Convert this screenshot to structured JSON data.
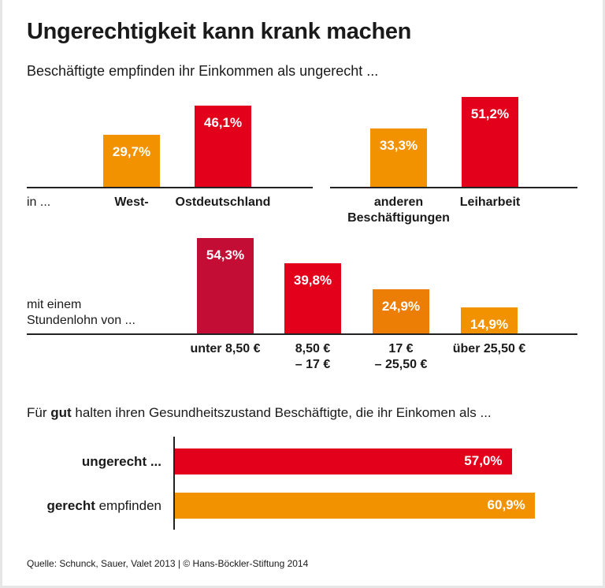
{
  "title": "Ungerechtigkeit kann krank machen",
  "subtitle": "Beschäftigte empfinden ihr Einkommen als ungerecht ...",
  "section2": {
    "pre": "Für ",
    "bold": "gut",
    "post": " halten ihren Gesundheitszustand Beschäftigte, die ihr Einkomen als ..."
  },
  "source": "Quelle: Schunck, Sauer, Valet 2013 | © Hans-Böckler-Stiftung 2014",
  "chart_data": [
    {
      "type": "bar",
      "row_label": "in ...",
      "categories": [
        "West-",
        "Ostdeutschland"
      ],
      "values": [
        29.7,
        46.1
      ],
      "labels": [
        "29,7%",
        "46,1%"
      ],
      "colors": [
        "#f39200",
        "#e2001a"
      ]
    },
    {
      "type": "bar",
      "categories": [
        "anderen\nBeschäftigungen",
        "Leiharbeit"
      ],
      "values": [
        33.3,
        51.2
      ],
      "labels": [
        "33,3%",
        "51,2%"
      ],
      "colors": [
        "#f39200",
        "#e2001a"
      ]
    },
    {
      "type": "bar",
      "row_label": "mit einem\nStundenlohn von ...",
      "categories": [
        "unter 8,50 €",
        "8,50 €\n– 17 €",
        "17 €\n– 25,50 €",
        "über 25,50 €"
      ],
      "values": [
        54.3,
        39.8,
        24.9,
        14.9
      ],
      "labels": [
        "54,3%",
        "39,8%",
        "24,9%",
        "14,9%"
      ],
      "colors": [
        "#c40d35",
        "#e2001a",
        "#ec7d05",
        "#f39200"
      ]
    },
    {
      "type": "bar",
      "orientation": "horizontal",
      "categories": [
        {
          "bold": "ungerecht ...",
          "normal": ""
        },
        {
          "bold": "gerecht",
          "normal": " empfinden"
        }
      ],
      "values": [
        57.0,
        60.9
      ],
      "labels": [
        "57,0%",
        "60,9%"
      ],
      "colors": [
        "#e2001a",
        "#f39200"
      ]
    }
  ]
}
